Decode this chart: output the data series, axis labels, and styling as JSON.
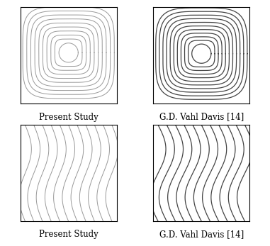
{
  "label_present": "Present Study",
  "label_ref": "G.D. Vahl Davis [14]",
  "bg_color": "#ffffff",
  "line_color_present": "#999999",
  "line_color_ref": "#444444",
  "font_size": 8.5
}
